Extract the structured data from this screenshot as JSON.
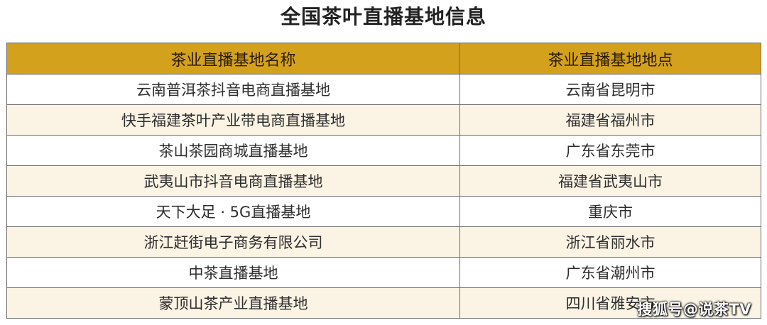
{
  "title": "全国茶叶直播基地信息",
  "table": {
    "headers": [
      "茶业直播基地名称",
      "茶业直播基地地点"
    ],
    "rows": [
      {
        "name": "云南普洱茶抖音电商直播基地",
        "location": "云南省昆明市"
      },
      {
        "name": "快手福建茶叶产业带电商直播基地",
        "location": "福建省福州市"
      },
      {
        "name": "茶山茶园商城直播基地",
        "location": "广东省东莞市"
      },
      {
        "name": "武夷山市抖音电商直播基地",
        "location": "福建省武夷山市"
      },
      {
        "name": "天下大足 · 5G直播基地",
        "location": "重庆市"
      },
      {
        "name": "浙江赶街电子商务有限公司",
        "location": "浙江省丽水市"
      },
      {
        "name": "中茶直播基地",
        "location": "广东省潮州市"
      },
      {
        "name": "蒙顶山茶产业直播基地",
        "location": "四川省雅安市"
      }
    ]
  },
  "watermark": "搜狐号@说茶TV",
  "colors": {
    "header_bg": "#d4a11d",
    "alt_row_bg": "#fbf3e4",
    "border": "#6b6b6b"
  }
}
